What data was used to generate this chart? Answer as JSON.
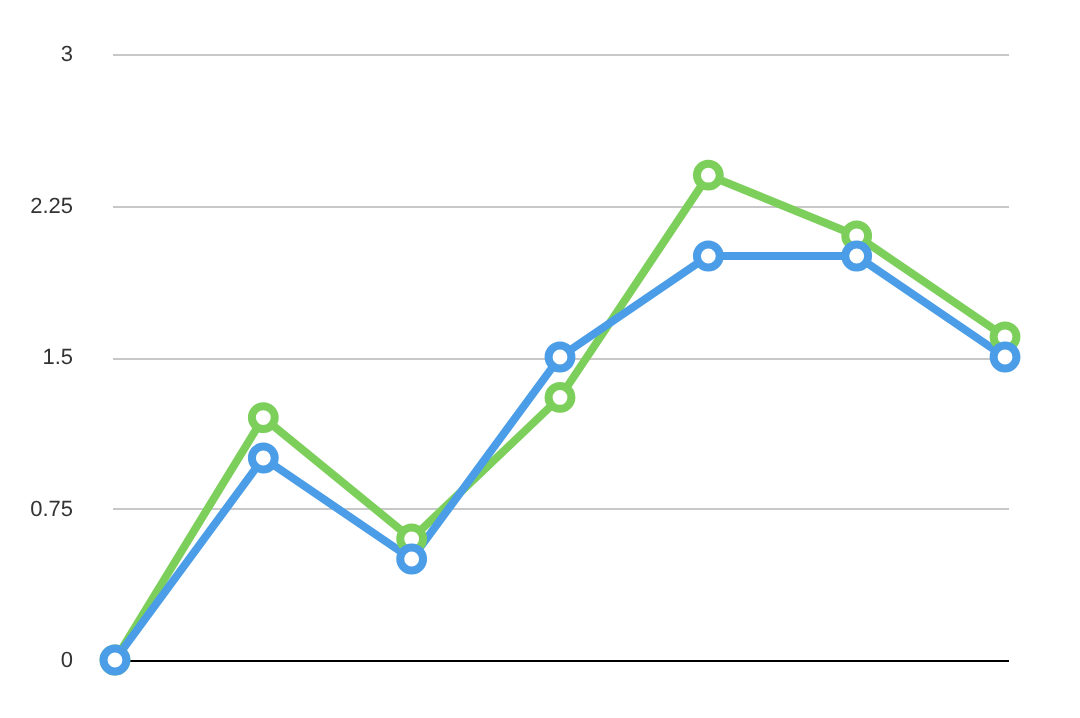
{
  "chart_data": {
    "type": "line",
    "categories": [
      null,
      null,
      null,
      null,
      null,
      null,
      null
    ],
    "series": [
      {
        "color": "#7ccf5a",
        "values": [
          0,
          1.2,
          0.6,
          1.3,
          2.4,
          2.1,
          1.6
        ]
      },
      {
        "color": "#4a9de6",
        "values": [
          0,
          1.0,
          0.5,
          1.5,
          2.0,
          2.0,
          1.5
        ]
      }
    ],
    "ylim": [
      0,
      3
    ],
    "yticks": [
      0,
      0.75,
      1.5,
      2.25,
      3
    ],
    "grid": "y",
    "tick_labels": "y",
    "marker": "circle",
    "line_style": "solid",
    "legend": false
  }
}
